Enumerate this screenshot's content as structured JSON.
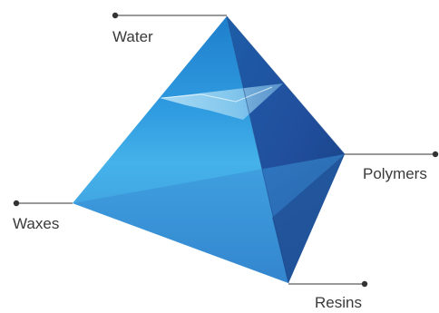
{
  "diagram": {
    "vertices": {
      "top": "Water",
      "right": "Polymers",
      "left": "Waxes",
      "bottom": "Resins"
    },
    "colors": {
      "face_light": "#3aa3e0",
      "face_mid": "#2f86cc",
      "face_dark": "#1f4f9a",
      "face_darkest": "#1a3f85",
      "leader_line": "#333333"
    }
  }
}
